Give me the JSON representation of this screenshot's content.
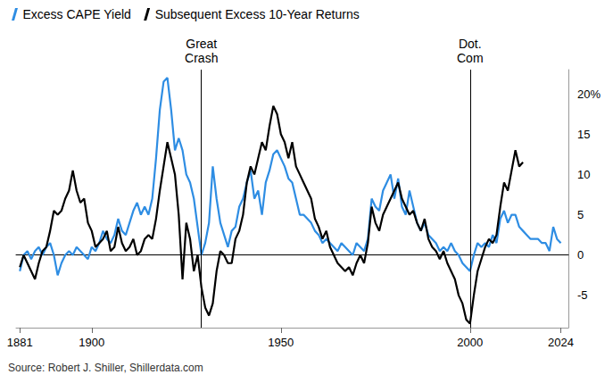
{
  "chart_data": {
    "type": "line",
    "x": [
      1881,
      1882,
      1883,
      1884,
      1885,
      1886,
      1887,
      1888,
      1889,
      1890,
      1891,
      1892,
      1893,
      1894,
      1895,
      1896,
      1897,
      1898,
      1899,
      1900,
      1901,
      1902,
      1903,
      1904,
      1905,
      1906,
      1907,
      1908,
      1909,
      1910,
      1911,
      1912,
      1913,
      1914,
      1915,
      1916,
      1917,
      1918,
      1919,
      1920,
      1921,
      1922,
      1923,
      1924,
      1925,
      1926,
      1927,
      1928,
      1929,
      1930,
      1931,
      1932,
      1933,
      1934,
      1935,
      1936,
      1937,
      1938,
      1939,
      1940,
      1941,
      1942,
      1943,
      1944,
      1945,
      1946,
      1947,
      1948,
      1949,
      1950,
      1951,
      1952,
      1953,
      1954,
      1955,
      1956,
      1957,
      1958,
      1959,
      1960,
      1961,
      1962,
      1963,
      1964,
      1965,
      1966,
      1967,
      1968,
      1969,
      1970,
      1971,
      1972,
      1973,
      1974,
      1975,
      1976,
      1977,
      1978,
      1979,
      1980,
      1981,
      1982,
      1983,
      1984,
      1985,
      1986,
      1987,
      1988,
      1989,
      1990,
      1991,
      1992,
      1993,
      1994,
      1995,
      1996,
      1997,
      1998,
      1999,
      2000,
      2001,
      2002,
      2003,
      2004,
      2005,
      2006,
      2007,
      2008,
      2009,
      2010,
      2011,
      2012,
      2013,
      2014,
      2015,
      2016,
      2017,
      2018,
      2019,
      2020,
      2021,
      2022,
      2023,
      2024
    ],
    "series": [
      {
        "name": "Excess CAPE Yield",
        "color": "#2e8de3",
        "values": [
          -2,
          0,
          0.5,
          -0.5,
          0.5,
          1,
          0,
          1,
          1.5,
          0,
          -2.5,
          -1,
          0,
          0.5,
          0,
          1,
          0.5,
          0,
          -0.5,
          1,
          0.5,
          1.5,
          3,
          2,
          1.5,
          2.5,
          4.5,
          3,
          2.5,
          4,
          5.5,
          6.5,
          5,
          6,
          5,
          7,
          12,
          18,
          21.5,
          22,
          18,
          13,
          14.5,
          13,
          10,
          9,
          7,
          3.5,
          0,
          1.5,
          4,
          11,
          7,
          4,
          2.5,
          1,
          3,
          3.5,
          6,
          7,
          9,
          10.5,
          7,
          8,
          5,
          9,
          10.5,
          12.5,
          13,
          12,
          11,
          9.5,
          9,
          7,
          5,
          5,
          4.5,
          4,
          3,
          2.5,
          1.5,
          2,
          1.5,
          1,
          0.5,
          1.5,
          1,
          0.5,
          0,
          1.5,
          1,
          0.5,
          2,
          7,
          6,
          5.5,
          8,
          9,
          10,
          7,
          9.5,
          6,
          5,
          8,
          6,
          4,
          3,
          4,
          2.5,
          2,
          1.5,
          0.5,
          1,
          0.5,
          1.5,
          0.5,
          0,
          -1,
          -1.5,
          -2,
          0,
          1.5,
          1,
          1.5,
          1,
          2.5,
          1.5,
          4.5,
          5.5,
          4,
          5,
          5,
          3.5,
          3,
          2.5,
          2,
          2,
          2,
          1.5,
          1.5,
          0.5,
          3.5,
          2,
          1.5
        ]
      },
      {
        "name": "Subsequent Excess 10-Year Returns",
        "color": "#000000",
        "values": [
          -1.5,
          0,
          -1,
          -2,
          -3,
          -1,
          0.5,
          1,
          3,
          5.5,
          5,
          5.5,
          7,
          8,
          10.5,
          8,
          6.5,
          7,
          4,
          3,
          1,
          1.5,
          2,
          3,
          0.5,
          1,
          3.5,
          1.5,
          0.5,
          1,
          2,
          0,
          0.5,
          2,
          2.5,
          2,
          4.5,
          8,
          11,
          14,
          12,
          10,
          5,
          -3,
          4,
          2,
          -2,
          0,
          -4,
          -6.5,
          -7.5,
          -6,
          -2,
          0.5,
          0,
          -1,
          -1,
          2,
          3,
          5,
          9,
          11,
          10,
          12,
          14,
          13,
          16,
          18.5,
          17.5,
          15,
          14,
          12,
          14,
          11,
          10,
          9,
          8,
          7,
          4.5,
          3.5,
          2,
          3,
          1,
          0,
          -1,
          -1.5,
          -2,
          -1.5,
          -2.5,
          -1,
          0,
          -1,
          1.5,
          6,
          4,
          3,
          5,
          6,
          7,
          8,
          9,
          7,
          6,
          5,
          5.5,
          4,
          3,
          4.5,
          2,
          1,
          0.5,
          -0.5,
          0.5,
          -1,
          -2,
          -3,
          -5,
          -6,
          -8,
          -8.5,
          -5,
          -2,
          -0.5,
          1,
          2,
          1.5,
          2.5,
          6,
          9,
          8,
          10.5,
          13,
          11,
          11.5,
          null,
          null,
          null,
          null,
          null,
          null,
          null,
          null,
          null,
          null
        ]
      }
    ],
    "xlim": [
      1880,
      2026
    ],
    "xticks": [
      1881,
      1900,
      1950,
      2000,
      2024
    ],
    "ylim": [
      -9,
      23
    ],
    "yticks": [
      -5,
      0,
      5,
      10,
      15,
      {
        "value": 20,
        "label": "20%"
      }
    ],
    "grid": false,
    "legend": "top-left",
    "annotations": [
      {
        "text": "Great\nCrash",
        "x": 1929
      },
      {
        "text": "Dot.\nCom",
        "x": 2000
      }
    ],
    "source": "Source: Robert J. Shiller, Shillerdata.com"
  }
}
